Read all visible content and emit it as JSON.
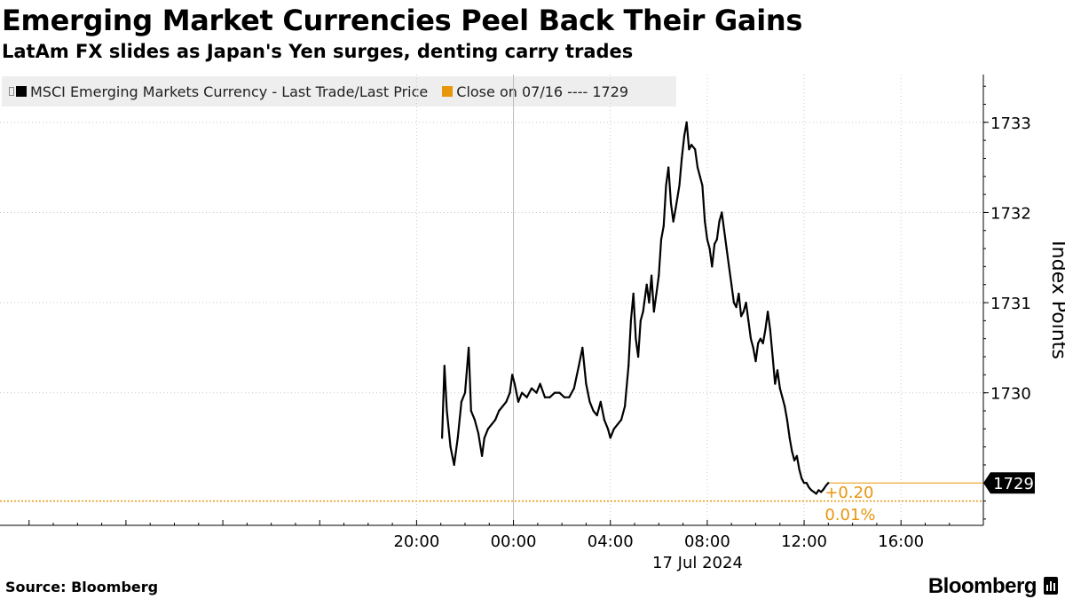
{
  "header": {
    "title": "Emerging Market Currencies Peel Back Their Gains",
    "subtitle": "LatAm FX slides as Japan's Yen surges, denting carry trades"
  },
  "legend": {
    "series_label": "MSCI Emerging Markets Currency - Last Trade/Last Price",
    "close_label": "Close on 07/16 ---- 1729",
    "series_color": "#000000",
    "close_color": "#e8960c"
  },
  "footer": {
    "source": "Source: Bloomberg",
    "brand": "Bloomberg"
  },
  "chart_data": {
    "type": "line",
    "title": "Emerging Market Currencies Peel Back Their Gains",
    "xlabel": "17 Jul 2024",
    "ylabel": "Index Points",
    "x_unit": "hours relative to 00:00 17 Jul 2024",
    "xlim": [
      -21.2,
      19.4
    ],
    "ylim": [
      1728.53,
      1733.53
    ],
    "x_ticks": [
      {
        "value": -4,
        "label": "20:00"
      },
      {
        "value": 0,
        "label": "00:00"
      },
      {
        "value": 4,
        "label": "04:00"
      },
      {
        "value": 8,
        "label": "08:00"
      },
      {
        "value": 12,
        "label": "12:00"
      },
      {
        "value": 16,
        "label": "16:00"
      }
    ],
    "x_date_label": "17 Jul 2024",
    "y_ticks": [
      {
        "value": 1730,
        "label": "1730"
      },
      {
        "value": 1731,
        "label": "1731"
      },
      {
        "value": 1732,
        "label": "1732"
      },
      {
        "value": 1733,
        "label": "1733"
      }
    ],
    "last_value": 1729.0,
    "last_value_label": "1729",
    "reference_line": {
      "value": 1728.8,
      "name": "Close on 07/16"
    },
    "change_labels": [
      "+0.20",
      "0.01%"
    ],
    "series": [
      {
        "name": "MSCI Emerging Markets Currency - Last Trade/Last Price",
        "points": [
          [
            -2.95,
            1729.5
          ],
          [
            -2.85,
            1730.3
          ],
          [
            -2.75,
            1729.8
          ],
          [
            -2.6,
            1729.4
          ],
          [
            -2.45,
            1729.2
          ],
          [
            -2.3,
            1729.5
          ],
          [
            -2.15,
            1729.9
          ],
          [
            -2.0,
            1730.0
          ],
          [
            -1.85,
            1730.5
          ],
          [
            -1.75,
            1729.8
          ],
          [
            -1.6,
            1729.7
          ],
          [
            -1.45,
            1729.55
          ],
          [
            -1.3,
            1729.3
          ],
          [
            -1.2,
            1729.5
          ],
          [
            -1.05,
            1729.6
          ],
          [
            -0.9,
            1729.65
          ],
          [
            -0.75,
            1729.7
          ],
          [
            -0.6,
            1729.8
          ],
          [
            -0.45,
            1729.85
          ],
          [
            -0.3,
            1729.9
          ],
          [
            -0.15,
            1730.0
          ],
          [
            -0.05,
            1730.2
          ],
          [
            0.05,
            1730.1
          ],
          [
            0.2,
            1729.9
          ],
          [
            0.35,
            1730.0
          ],
          [
            0.55,
            1729.95
          ],
          [
            0.75,
            1730.05
          ],
          [
            0.95,
            1730.0
          ],
          [
            1.1,
            1730.1
          ],
          [
            1.3,
            1729.95
          ],
          [
            1.5,
            1729.95
          ],
          [
            1.7,
            1730.0
          ],
          [
            1.9,
            1730.0
          ],
          [
            2.1,
            1729.95
          ],
          [
            2.3,
            1729.95
          ],
          [
            2.5,
            1730.05
          ],
          [
            2.7,
            1730.3
          ],
          [
            2.85,
            1730.5
          ],
          [
            3.0,
            1730.1
          ],
          [
            3.15,
            1729.9
          ],
          [
            3.3,
            1729.8
          ],
          [
            3.45,
            1729.75
          ],
          [
            3.6,
            1729.9
          ],
          [
            3.75,
            1729.7
          ],
          [
            3.9,
            1729.6
          ],
          [
            4.0,
            1729.5
          ],
          [
            4.15,
            1729.6
          ],
          [
            4.3,
            1729.65
          ],
          [
            4.45,
            1729.7
          ],
          [
            4.6,
            1729.85
          ],
          [
            4.75,
            1730.3
          ],
          [
            4.85,
            1730.8
          ],
          [
            4.95,
            1731.1
          ],
          [
            5.05,
            1730.6
          ],
          [
            5.15,
            1730.4
          ],
          [
            5.25,
            1730.8
          ],
          [
            5.35,
            1730.9
          ],
          [
            5.5,
            1731.2
          ],
          [
            5.6,
            1731.0
          ],
          [
            5.7,
            1731.3
          ],
          [
            5.8,
            1730.9
          ],
          [
            5.9,
            1731.1
          ],
          [
            6.0,
            1731.3
          ],
          [
            6.1,
            1731.7
          ],
          [
            6.2,
            1731.85
          ],
          [
            6.3,
            1732.3
          ],
          [
            6.4,
            1732.5
          ],
          [
            6.5,
            1732.1
          ],
          [
            6.6,
            1731.9
          ],
          [
            6.7,
            1732.05
          ],
          [
            6.85,
            1732.3
          ],
          [
            6.95,
            1732.6
          ],
          [
            7.05,
            1732.85
          ],
          [
            7.15,
            1733.0
          ],
          [
            7.25,
            1732.7
          ],
          [
            7.35,
            1732.75
          ],
          [
            7.5,
            1732.7
          ],
          [
            7.6,
            1732.5
          ],
          [
            7.7,
            1732.4
          ],
          [
            7.8,
            1732.3
          ],
          [
            7.9,
            1731.9
          ],
          [
            8.0,
            1731.7
          ],
          [
            8.1,
            1731.6
          ],
          [
            8.2,
            1731.4
          ],
          [
            8.3,
            1731.65
          ],
          [
            8.4,
            1731.7
          ],
          [
            8.5,
            1731.9
          ],
          [
            8.6,
            1732.0
          ],
          [
            8.7,
            1731.8
          ],
          [
            8.8,
            1731.6
          ],
          [
            8.9,
            1731.4
          ],
          [
            9.0,
            1731.2
          ],
          [
            9.1,
            1731.0
          ],
          [
            9.2,
            1730.95
          ],
          [
            9.3,
            1731.1
          ],
          [
            9.4,
            1730.85
          ],
          [
            9.5,
            1730.9
          ],
          [
            9.6,
            1731.0
          ],
          [
            9.7,
            1730.8
          ],
          [
            9.8,
            1730.6
          ],
          [
            9.9,
            1730.5
          ],
          [
            10.0,
            1730.35
          ],
          [
            10.1,
            1730.55
          ],
          [
            10.2,
            1730.6
          ],
          [
            10.3,
            1730.55
          ],
          [
            10.4,
            1730.7
          ],
          [
            10.5,
            1730.9
          ],
          [
            10.6,
            1730.7
          ],
          [
            10.7,
            1730.4
          ],
          [
            10.8,
            1730.1
          ],
          [
            10.9,
            1730.25
          ],
          [
            11.0,
            1730.05
          ],
          [
            11.1,
            1729.95
          ],
          [
            11.2,
            1729.85
          ],
          [
            11.3,
            1729.7
          ],
          [
            11.4,
            1729.5
          ],
          [
            11.5,
            1729.35
          ],
          [
            11.6,
            1729.25
          ],
          [
            11.7,
            1729.3
          ],
          [
            11.8,
            1729.15
          ],
          [
            11.9,
            1729.05
          ],
          [
            12.0,
            1729.0
          ],
          [
            12.1,
            1729.0
          ],
          [
            12.2,
            1728.95
          ],
          [
            12.3,
            1728.92
          ],
          [
            12.4,
            1728.9
          ],
          [
            12.5,
            1728.88
          ],
          [
            12.6,
            1728.92
          ],
          [
            12.7,
            1728.9
          ],
          [
            12.8,
            1728.93
          ],
          [
            12.9,
            1728.97
          ],
          [
            13.0,
            1729.0
          ]
        ]
      }
    ]
  }
}
